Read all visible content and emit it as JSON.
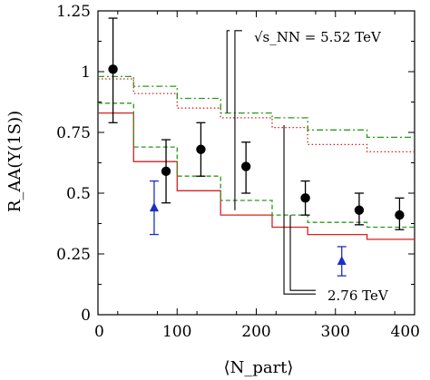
{
  "chart_data": {
    "type": "line",
    "xlabel": "⟨N_part⟩",
    "ylabel": "R_AA(Υ(1S))",
    "xlim": [
      0,
      400
    ],
    "ylim": [
      0,
      1.25
    ],
    "x_ticks": [
      0,
      100,
      200,
      300,
      400
    ],
    "y_ticks": [
      0,
      0.25,
      0.5,
      0.75,
      1,
      1.25
    ],
    "x_tick_labels": [
      "0",
      "100",
      "200",
      "300",
      "400"
    ],
    "y_tick_labels": [
      "0",
      "0.25",
      "0.5",
      "0.75",
      "1",
      "1.25"
    ],
    "grid": false,
    "step_edges": [
      0,
      45,
      100,
      155,
      220,
      265,
      340,
      400
    ],
    "series": [
      {
        "id": "red-solid-276",
        "style": "solid",
        "color": "#d62020",
        "values": [
          0.83,
          0.63,
          0.51,
          0.41,
          0.36,
          0.33,
          0.31
        ]
      },
      {
        "id": "green-dashed-276",
        "style": "dashed",
        "color": "#2a9a1a",
        "values": [
          0.87,
          0.69,
          0.57,
          0.47,
          0.41,
          0.38,
          0.36
        ]
      },
      {
        "id": "red-dotted-552",
        "style": "dotted",
        "color": "#d62020",
        "values": [
          0.97,
          0.91,
          0.85,
          0.81,
          0.77,
          0.7,
          0.67
        ]
      },
      {
        "id": "green-dashdot-552",
        "style": "dashdot",
        "color": "#2a9a1a",
        "values": [
          0.98,
          0.94,
          0.89,
          0.83,
          0.81,
          0.76,
          0.73
        ]
      }
    ],
    "points": [
      {
        "id": "black-circles",
        "marker": "circle",
        "color": "#000000",
        "data": [
          {
            "x": 19,
            "y": 1.01,
            "lo": 0.79,
            "hi": 1.22
          },
          {
            "x": 86,
            "y": 0.59,
            "lo": 0.46,
            "hi": 0.72
          },
          {
            "x": 130,
            "y": 0.68,
            "lo": 0.57,
            "hi": 0.79
          },
          {
            "x": 187,
            "y": 0.61,
            "lo": 0.5,
            "hi": 0.71
          },
          {
            "x": 262,
            "y": 0.48,
            "lo": 0.41,
            "hi": 0.55
          },
          {
            "x": 330,
            "y": 0.43,
            "lo": 0.37,
            "hi": 0.5
          },
          {
            "x": 381,
            "y": 0.41,
            "lo": 0.35,
            "hi": 0.48
          }
        ]
      },
      {
        "id": "blue-triangles",
        "marker": "triangle",
        "color": "#1a2fc8",
        "data": [
          {
            "x": 71,
            "y": 0.44,
            "lo": 0.33,
            "hi": 0.55
          },
          {
            "x": 308,
            "y": 0.22,
            "lo": 0.16,
            "hi": 0.28
          }
        ]
      }
    ],
    "annotations": {
      "label_552": "√s_NN = 5.52 TeV",
      "label_276": "2.76 TeV"
    }
  }
}
